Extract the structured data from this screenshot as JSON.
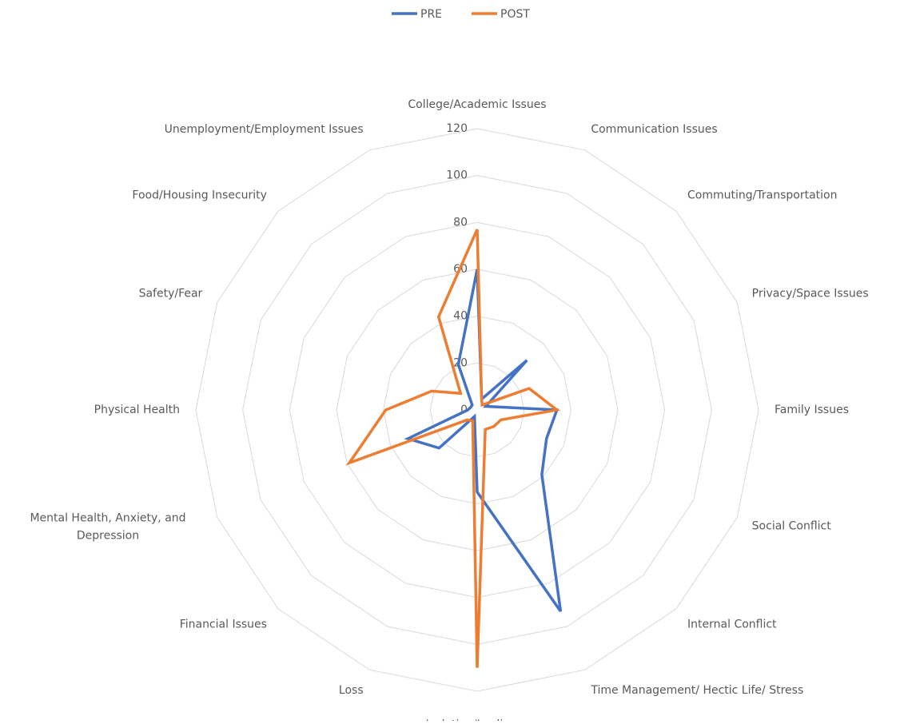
{
  "chart_data": {
    "type": "radar",
    "categories": [
      "College/Academic Issues",
      "Communication Issues",
      "Commuting/Transportation",
      "Privacy/Space Issues",
      "Family Issues",
      "Social Conflict",
      "Internal Conflict",
      "Time Management/ Hectic Life/ Stress",
      "Isolation/Lonliness",
      "Loss",
      "Financial Issues",
      "Mental Health, Anxiety, and Depression",
      "Physical Health",
      "Safety/Fear",
      "Food/Housing Insecurity",
      "Unemployment/Employment Issues"
    ],
    "series": [
      {
        "name": "PRE",
        "color": "#4472c4",
        "values": [
          60,
          5,
          30,
          4,
          34,
          32,
          39,
          93,
          35,
          3,
          23,
          32,
          4,
          3,
          3,
          21
        ]
      },
      {
        "name": "POST",
        "color": "#ed7d31",
        "values": [
          77,
          5,
          3,
          24,
          34,
          11,
          10,
          9,
          110,
          5,
          6,
          59,
          39,
          21,
          10,
          43
        ]
      }
    ],
    "ylim": [
      0,
      120
    ],
    "yticks": [
      0,
      20,
      40,
      60,
      80,
      100,
      120
    ],
    "grid": true,
    "legend": "top"
  }
}
